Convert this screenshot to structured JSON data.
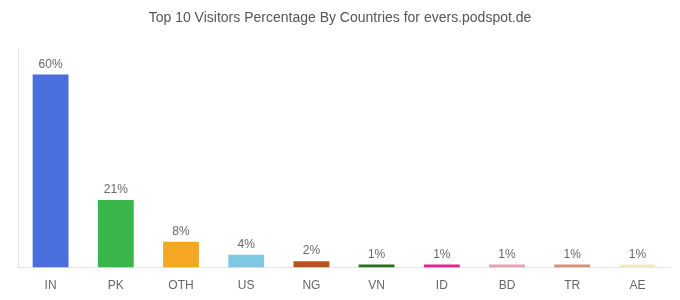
{
  "chart_data": {
    "type": "bar",
    "title": "Top 10 Visitors Percentage By Countries for evers.podspot.de",
    "categories": [
      "IN",
      "PK",
      "OTH",
      "US",
      "NG",
      "VN",
      "ID",
      "BD",
      "TR",
      "AE"
    ],
    "values": [
      60,
      21,
      8,
      4,
      2,
      1,
      1,
      1,
      1,
      1
    ],
    "value_labels": [
      "60%",
      "21%",
      "8%",
      "4%",
      "2%",
      "1%",
      "1%",
      "1%",
      "1%",
      "1%"
    ],
    "colors": [
      "#4a6fdc",
      "#3ab54a",
      "#f5a623",
      "#7ec8e3",
      "#b5541c",
      "#2a6e1e",
      "#e91e8c",
      "#e8a0b4",
      "#d4907a",
      "#f0e8c0"
    ],
    "ylim": [
      0,
      68
    ],
    "grid": false,
    "data_labels": true,
    "tick_labels": "x"
  }
}
